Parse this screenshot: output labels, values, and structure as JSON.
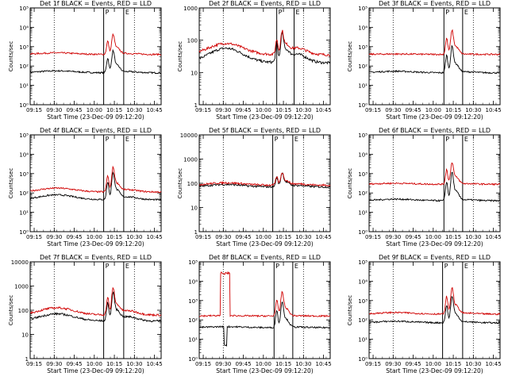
{
  "chart_data": [
    {
      "type": "line",
      "title": "Det 1f BLACK = Events, RED = LLD",
      "xlabel": "Start Time (23-Dec-09 09:12:20)",
      "ylabel": "Counts/sec",
      "yscale": "log",
      "ylim_exp": [
        0,
        5
      ],
      "ytick_labels": [
        "10⁰",
        "10¹",
        "10²",
        "10³",
        "10⁴",
        "10⁵"
      ],
      "xticks": [
        "09:15",
        "09:30",
        "09:45",
        "10:00",
        "10:15",
        "10:30",
        "10:45"
      ],
      "markers": [
        {
          "label": "P",
          "x": "10:07"
        },
        {
          "label": "E",
          "x": "10:22"
        }
      ],
      "dotted": [
        "09:30",
        "10:30"
      ],
      "series": [
        {
          "name": "Events",
          "color": "#000000",
          "base": 1.65,
          "bump": 0.1,
          "flare": 1.0
        },
        {
          "name": "LLD",
          "color": "#d00000",
          "base": 2.6,
          "bump": 0.08,
          "flare": 0.9
        }
      ]
    },
    {
      "type": "line",
      "title": "Det 2f BLACK = Events, RED = LLD",
      "xlabel": "Start Time (23-Dec-09 09:12:20)",
      "ylabel": "Counts/sec",
      "yscale": "log",
      "ylim_exp": [
        0,
        3
      ],
      "ytick_labels": [
        "1",
        "10",
        "100",
        "1000"
      ],
      "xticks": [
        "09:15",
        "09:30",
        "09:45",
        "10:00",
        "10:15",
        "10:30",
        "10:45"
      ],
      "markers": [
        {
          "label": "P",
          "x": "10:10"
        },
        {
          "label": "E",
          "x": "10:23"
        }
      ],
      "dotted": [
        "09:30",
        "10:30"
      ],
      "series": [
        {
          "name": "Events",
          "color": "#000000",
          "base": 1.3,
          "bump": 0.45,
          "flare": 0.75
        },
        {
          "name": "LLD",
          "color": "#d00000",
          "base": 1.55,
          "bump": 0.35,
          "flare": 0.6
        }
      ]
    },
    {
      "type": "line",
      "title": "Det 3f BLACK = Events, RED = LLD",
      "xlabel": "Start Time (23-Dec-09 09:12:20)",
      "ylabel": "Counts/sec",
      "yscale": "log",
      "ylim_exp": [
        0,
        5
      ],
      "ytick_labels": [
        "10⁰",
        "10¹",
        "10²",
        "10³",
        "10⁴",
        "10⁵"
      ],
      "xticks": [
        "09:15",
        "09:30",
        "09:45",
        "10:00",
        "10:15",
        "10:30",
        "10:45"
      ],
      "markers": [
        {
          "label": "P",
          "x": "10:08"
        },
        {
          "label": "E",
          "x": "10:22"
        }
      ],
      "dotted": [
        "09:30",
        "10:30"
      ],
      "series": [
        {
          "name": "Events",
          "color": "#000000",
          "base": 1.65,
          "bump": 0.08,
          "flare": 1.2
        },
        {
          "name": "LLD",
          "color": "#d00000",
          "base": 2.6,
          "bump": 0.02,
          "flare": 1.1
        }
      ]
    },
    {
      "type": "line",
      "title": "Det 4f BLACK = Events, RED = LLD",
      "xlabel": "Start Time (23-Dec-09 09:12:20)",
      "ylabel": "Counts/sec",
      "yscale": "log",
      "ylim_exp": [
        0,
        5
      ],
      "ytick_labels": [
        "10⁰",
        "10¹",
        "10²",
        "10³",
        "10⁴",
        "10⁵"
      ],
      "xticks": [
        "09:15",
        "09:30",
        "09:45",
        "10:00",
        "10:15",
        "10:30",
        "10:45"
      ],
      "markers": [
        {
          "label": "P",
          "x": "10:07"
        },
        {
          "label": "E",
          "x": "10:22"
        }
      ],
      "dotted": [
        "09:30",
        "10:30"
      ],
      "series": [
        {
          "name": "Events",
          "color": "#000000",
          "base": 1.65,
          "bump": 0.25,
          "flare": 1.2
        },
        {
          "name": "LLD",
          "color": "#d00000",
          "base": 2.05,
          "bump": 0.2,
          "flare": 1.1
        }
      ]
    },
    {
      "type": "line",
      "title": "Det 5f BLACK = Events, RED = LLD",
      "xlabel": "Start Time (23-Dec-09 09:12:20)",
      "ylabel": "Counts/sec",
      "yscale": "log",
      "ylim_exp": [
        0,
        4
      ],
      "ytick_labels": [
        "1",
        "10",
        "100",
        "1000",
        "10000"
      ],
      "xticks": [
        "09:15",
        "09:30",
        "09:45",
        "10:00",
        "10:15",
        "10:30",
        "10:45"
      ],
      "markers": [
        {
          "label": "P",
          "x": "10:07"
        },
        {
          "label": "E",
          "x": "10:22"
        }
      ],
      "dotted": [
        "09:30",
        "10:30"
      ],
      "series": [
        {
          "name": "Events",
          "color": "#000000",
          "base": 1.85,
          "bump": 0.1,
          "flare": 0.5
        },
        {
          "name": "LLD",
          "color": "#d00000",
          "base": 1.92,
          "bump": 0.1,
          "flare": 0.45
        }
      ]
    },
    {
      "type": "line",
      "title": "Det 6f BLACK = Events, RED = LLD",
      "xlabel": "Start Time (23-Dec-09 09:12:20)",
      "ylabel": "Counts/sec",
      "yscale": "log",
      "ylim_exp": [
        0,
        5
      ],
      "ytick_labels": [
        "10⁰",
        "10¹",
        "10²",
        "10³",
        "10⁴",
        "10⁵"
      ],
      "xticks": [
        "09:15",
        "09:30",
        "09:45",
        "10:00",
        "10:15",
        "10:30",
        "10:45"
      ],
      "markers": [
        {
          "label": "P",
          "x": "10:08"
        },
        {
          "label": "E",
          "x": "10:22"
        }
      ],
      "dotted": [
        "09:30",
        "10:30"
      ],
      "series": [
        {
          "name": "Events",
          "color": "#000000",
          "base": 1.6,
          "bump": 0.08,
          "flare": 1.3
        },
        {
          "name": "LLD",
          "color": "#d00000",
          "base": 2.45,
          "bump": 0.05,
          "flare": 1.0
        }
      ]
    },
    {
      "type": "line",
      "title": "Det 7f BLACK = Events, RED = LLD",
      "xlabel": "Start Time (23-Dec-09 09:12:20)",
      "ylabel": "Counts/sec",
      "yscale": "log",
      "ylim_exp": [
        0,
        4
      ],
      "ytick_labels": [
        "1",
        "10",
        "100",
        "1000",
        "10000"
      ],
      "xticks": [
        "09:15",
        "09:30",
        "09:45",
        "10:00",
        "10:15",
        "10:30",
        "10:45"
      ],
      "markers": [
        {
          "label": "P",
          "x": "10:07"
        },
        {
          "label": "E",
          "x": "10:22"
        }
      ],
      "dotted": [
        "09:30",
        "10:30"
      ],
      "series": [
        {
          "name": "Events",
          "color": "#000000",
          "base": 1.55,
          "bump": 0.3,
          "flare": 1.0
        },
        {
          "name": "LLD",
          "color": "#d00000",
          "base": 1.8,
          "bump": 0.3,
          "flare": 0.95
        }
      ]
    },
    {
      "type": "line",
      "title": "Det 8f BLACK = Events, RED = LLD",
      "xlabel": "Start Time (23-Dec-09 09:12:20)",
      "ylabel": "",
      "yscale": "log",
      "ylim_exp": [
        0,
        5
      ],
      "ytick_labels": [
        "10⁰",
        "10¹",
        "10²",
        "10³",
        "10⁴",
        "10⁵"
      ],
      "xticks": [
        "09:15",
        "09:30",
        "09:45",
        "10:00",
        "10:15",
        "10:30",
        "10:45"
      ],
      "markers": [
        {
          "label": "P",
          "x": "10:08"
        },
        {
          "label": "E",
          "x": "10:22"
        }
      ],
      "dotted": [
        "09:30",
        "10:30"
      ],
      "spike": {
        "start": "09:28",
        "end": "09:35",
        "red_level_exp": 4.4,
        "black_dip_exp": 0.7
      },
      "series": [
        {
          "name": "Events",
          "color": "#000000",
          "base": 1.6,
          "bump": 0.05,
          "flare": 1.2
        },
        {
          "name": "LLD",
          "color": "#d00000",
          "base": 2.2,
          "bump": 0.02,
          "flare": 1.1
        }
      ]
    },
    {
      "type": "line",
      "title": "Det 9f BLACK = Events, RED = LLD",
      "xlabel": "Start Time (23-Dec-09 09:12:20)",
      "ylabel": "Counts/sec",
      "yscale": "log",
      "ylim_exp": [
        0,
        5
      ],
      "ytick_labels": [
        "10⁰",
        "10¹",
        "10²",
        "10³",
        "10⁴",
        "10⁵"
      ],
      "xticks": [
        "09:15",
        "09:30",
        "09:45",
        "10:00",
        "10:15",
        "10:30",
        "10:45"
      ],
      "markers": [
        {
          "label": "P",
          "x": "10:07"
        },
        {
          "label": "E",
          "x": "10:22"
        }
      ],
      "dotted": [
        "09:30",
        "10:30"
      ],
      "series": [
        {
          "name": "Events",
          "color": "#000000",
          "base": 1.85,
          "bump": 0.08,
          "flare": 1.2
        },
        {
          "name": "LLD",
          "color": "#d00000",
          "base": 2.3,
          "bump": 0.08,
          "flare": 1.2
        }
      ]
    }
  ]
}
